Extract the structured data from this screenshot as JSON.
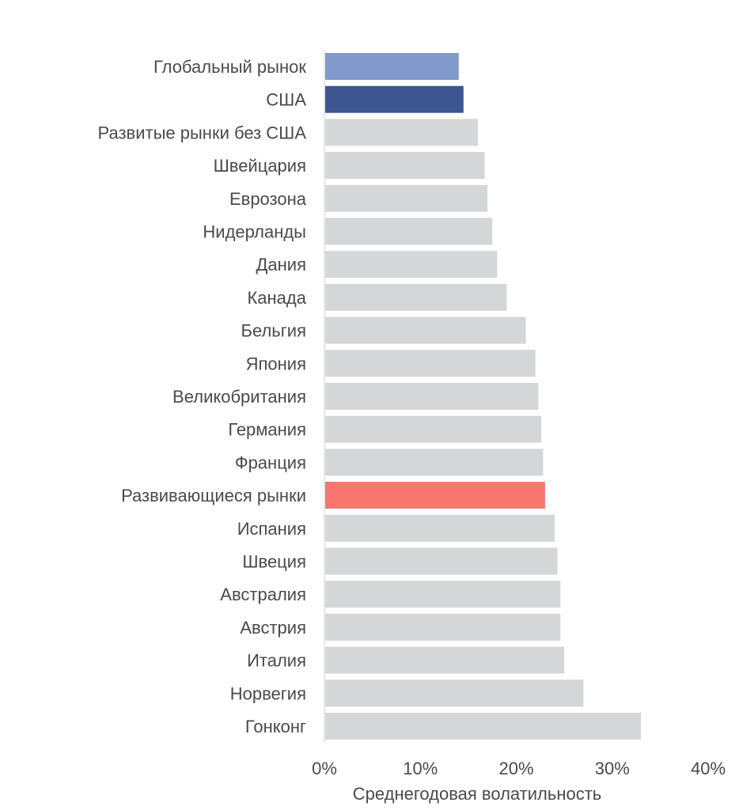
{
  "chart_data": {
    "type": "bar",
    "orientation": "horizontal",
    "categories": [
      "Глобальный рынок",
      "США",
      "Развитые рынки без США",
      "Швейцария",
      "Еврозона",
      "Нидерланды",
      "Дания",
      "Канада",
      "Бельгия",
      "Япония",
      "Великобритания",
      "Германия",
      "Франция",
      "Развивающиеся рынки",
      "Испания",
      "Швеция",
      "Австралия",
      "Австрия",
      "Италия",
      "Норвегия",
      "Гонконг"
    ],
    "values": [
      14.0,
      14.5,
      16.0,
      16.7,
      17.0,
      17.5,
      18.0,
      19.0,
      21.0,
      22.0,
      22.3,
      22.6,
      22.8,
      23.0,
      24.0,
      24.3,
      24.6,
      24.6,
      25.0,
      27.0,
      33.0
    ],
    "colors": [
      "#8299cc",
      "#3d5591",
      "#d4d6d7",
      "#d4d6d7",
      "#d4d6d7",
      "#d4d6d7",
      "#d4d6d7",
      "#d4d6d7",
      "#d4d6d7",
      "#d4d6d7",
      "#d4d6d7",
      "#d4d6d7",
      "#d4d6d7",
      "#f8766d",
      "#d4d6d7",
      "#d4d6d7",
      "#d4d6d7",
      "#d4d6d7",
      "#d4d6d7",
      "#d4d6d7",
      "#d4d6d7"
    ],
    "xlabel": "Среднегодовая волатильность",
    "ylabel": "",
    "title": "",
    "xlim": [
      0,
      40
    ],
    "ticks": [
      0,
      10,
      20,
      30,
      40
    ],
    "tick_labels": [
      "0%",
      "10%",
      "20%",
      "30%",
      "40%"
    ],
    "grid": false,
    "legend": "none"
  }
}
